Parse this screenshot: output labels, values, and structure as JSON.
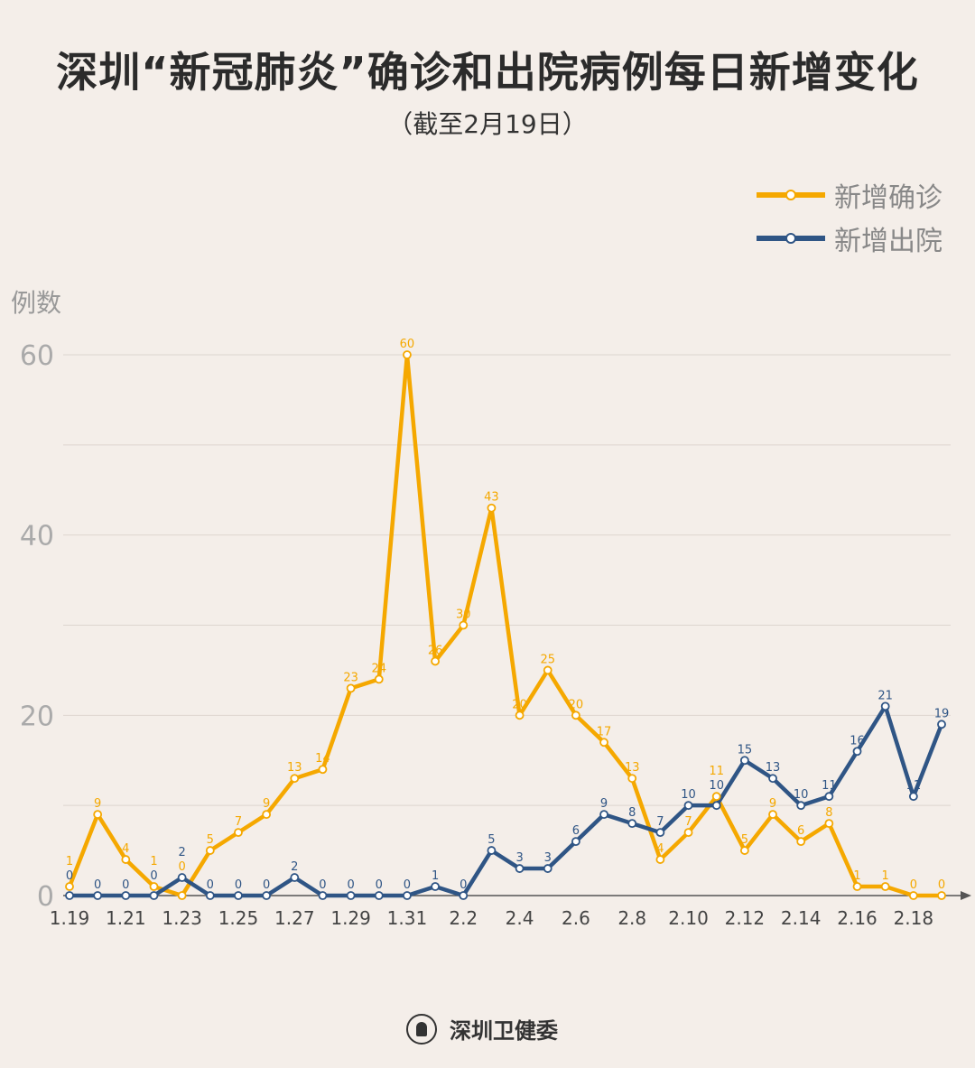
{
  "title": "深圳“新冠肺炎”确诊和出院病例每日新增变化",
  "subtitle": "（截至2月19日）",
  "footer": {
    "org": "深圳卫健委"
  },
  "colors": {
    "confirmed": "#f5a800",
    "discharged": "#2f5585",
    "background": "#f4eee9"
  },
  "chart_data": {
    "type": "line",
    "title": "深圳“新冠肺炎”确诊和出院病例每日新增变化",
    "subtitle": "（截至2月19日）",
    "ylabel": "例数",
    "xlabel": "",
    "ylim": [
      0,
      60
    ],
    "yticks": [
      0,
      20,
      40,
      60
    ],
    "grid": true,
    "legend": "top-right",
    "x": [
      "1.19",
      "1.20",
      "1.21",
      "1.22",
      "1.23",
      "1.24",
      "1.25",
      "1.26",
      "1.27",
      "1.28",
      "1.29",
      "1.30",
      "1.31",
      "2.1",
      "2.2",
      "2.3",
      "2.4",
      "2.5",
      "2.6",
      "2.7",
      "2.8",
      "2.9",
      "2.10",
      "2.11",
      "2.12",
      "2.13",
      "2.14",
      "2.15",
      "2.16",
      "2.17",
      "2.18",
      "2.19"
    ],
    "xtick_labels": [
      "1.19",
      "1.21",
      "1.23",
      "1.25",
      "1.27",
      "1.29",
      "1.31",
      "2.2",
      "2.4",
      "2.6",
      "2.8",
      "2.10",
      "2.12",
      "2.14",
      "2.16",
      "2.18"
    ],
    "series": [
      {
        "name": "新增确诊",
        "color": "#f5a800",
        "values": [
          1,
          9,
          4,
          1,
          0,
          5,
          7,
          9,
          13,
          14,
          23,
          24,
          60,
          26,
          30,
          43,
          20,
          25,
          20,
          17,
          13,
          4,
          7,
          11,
          5,
          9,
          6,
          8,
          1,
          1,
          0,
          0
        ]
      },
      {
        "name": "新增出院",
        "color": "#2f5585",
        "values": [
          0,
          0,
          0,
          0,
          2,
          0,
          0,
          0,
          2,
          0,
          0,
          0,
          0,
          1,
          0,
          5,
          3,
          3,
          6,
          9,
          8,
          7,
          10,
          10,
          15,
          13,
          10,
          11,
          16,
          21,
          11,
          19
        ]
      }
    ]
  }
}
